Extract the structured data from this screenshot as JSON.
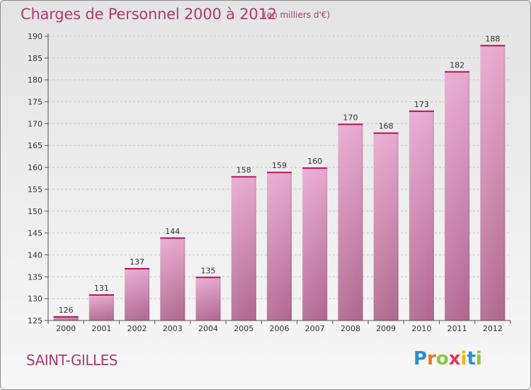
{
  "header": {
    "title": "Charges de Personnel 2000 à 2012",
    "subtitle": "(en milliers d'€)"
  },
  "footer": {
    "town": "SAINT-GILLES",
    "logo_letters": [
      "P",
      "r",
      "o",
      "x",
      "i",
      "t",
      "i"
    ],
    "logo_colors": [
      "#2a8fd4",
      "#e87722",
      "#8cc63f",
      "#e8345a",
      "#f5b400",
      "#2a8fd4",
      "#8cc63f"
    ]
  },
  "chart_data": {
    "type": "bar",
    "title": "Charges de Personnel 2000 à 2012",
    "subtitle": "(en milliers d'€)",
    "categories": [
      "2000",
      "2001",
      "2002",
      "2003",
      "2004",
      "2005",
      "2006",
      "2007",
      "2008",
      "2009",
      "2010",
      "2011",
      "2012"
    ],
    "values": [
      126,
      131,
      137,
      144,
      135,
      158,
      159,
      160,
      170,
      168,
      173,
      182,
      188
    ],
    "ylim": [
      125,
      190
    ],
    "yticks": [
      125,
      130,
      135,
      140,
      145,
      150,
      155,
      160,
      165,
      170,
      175,
      180,
      185,
      190
    ],
    "grid": "horizontal dashed",
    "colors": {
      "bar_top": "#e8a9cf",
      "bar_bottom": "#b0678f",
      "bar_edge": "#b7155a"
    }
  }
}
